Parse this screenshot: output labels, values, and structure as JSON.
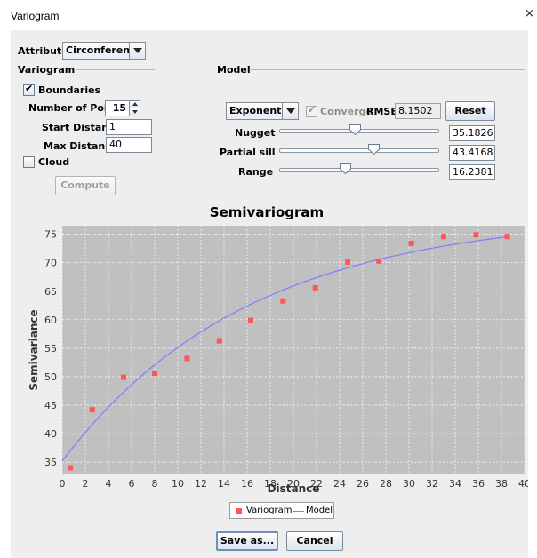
{
  "window": {
    "title": "Variogram",
    "close_glyph": "×"
  },
  "attribute": {
    "label": "Attribute",
    "value": "Circonference"
  },
  "variogram_section": {
    "label": "Variogram",
    "boundaries_label": "Boundaries",
    "boundaries_checked": true,
    "num_points_label": "Number of Points",
    "num_points_value": "15",
    "start_distance_label": "Start Distance",
    "start_distance_value": "1",
    "max_distance_label": "Max Distance",
    "max_distance_value": "40",
    "cloud_label": "Cloud",
    "cloud_checked": false,
    "compute_label": "Compute"
  },
  "model_section": {
    "label": "Model",
    "model_type": "Exponential",
    "converge_label": "Converge",
    "converge_checked": true,
    "rmse_label": "RMSE",
    "rmse_value": "8.1502",
    "reset_label": "Reset",
    "nugget_label": "Nugget",
    "nugget_value": "35.1826",
    "nugget_slider_fraction": 0.47,
    "partial_sill_label": "Partial sill",
    "partial_sill_value": "43.4168",
    "partial_sill_slider_fraction": 0.59,
    "range_label": "Range",
    "range_value": "16.2381",
    "range_slider_fraction": 0.41
  },
  "chart_data": {
    "type": "scatter",
    "title": "Semivariogram",
    "xlabel": "Distance",
    "ylabel": "Semivariance",
    "xlim": [
      0,
      40
    ],
    "ylim": [
      33,
      76.5
    ],
    "xticks": [
      0,
      2,
      4,
      6,
      8,
      10,
      12,
      14,
      16,
      18,
      20,
      22,
      24,
      26,
      28,
      30,
      32,
      34,
      36,
      38,
      40
    ],
    "yticks": [
      35,
      40,
      45,
      50,
      55,
      60,
      65,
      70,
      75
    ],
    "grid": true,
    "plot_background": "#c0c0c0",
    "series": [
      {
        "name": "Variogram",
        "kind": "points",
        "color": "#ff5555",
        "x": [
          0.7,
          2.6,
          5.3,
          8.0,
          10.8,
          13.6,
          16.3,
          19.1,
          21.9,
          24.7,
          27.4,
          30.2,
          33.0,
          35.8,
          38.5
        ],
        "y": [
          34.0,
          44.2,
          49.9,
          50.6,
          53.2,
          56.3,
          59.9,
          63.3,
          65.6,
          70.1,
          70.3,
          73.4,
          74.6,
          74.9,
          74.6
        ]
      },
      {
        "name": "Model",
        "kind": "line",
        "color": "#8080ff",
        "model": "exponential",
        "nugget": 35.1826,
        "partial_sill": 43.4168,
        "range": 16.2381
      }
    ],
    "legend_position": "bottom"
  },
  "footer": {
    "save_label": "Save as...",
    "cancel_label": "Cancel"
  },
  "colors": {
    "panel": "#eeeeee",
    "accent_border": "#6e8fb8"
  }
}
